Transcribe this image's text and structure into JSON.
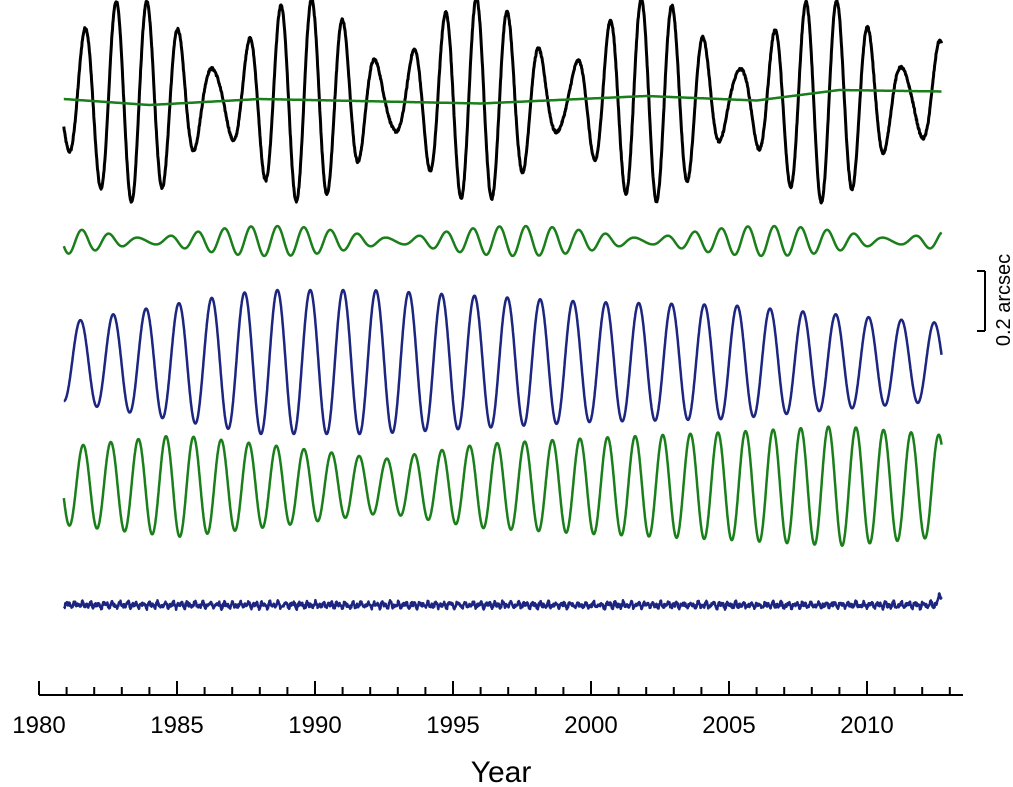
{
  "chart_data": {
    "type": "line",
    "title": "",
    "xlabel": "Year",
    "ylabel": "",
    "xlim": [
      1980,
      2013.5
    ],
    "x_ticks_major": [
      1980,
      1985,
      1990,
      1995,
      2000,
      2005,
      2010
    ],
    "x_tick_labels": [
      "1980",
      "1985",
      "1990",
      "1995",
      "2000",
      "2005",
      "2010"
    ],
    "x_ticks_minor_step": 1,
    "x_range": [
      1980.9,
      2012.7
    ],
    "grid": false,
    "legend": "none",
    "scale_bar": {
      "label": "0.2 arcsec",
      "value_arcsec": 0.2
    },
    "series": [
      {
        "color": "#000000",
        "components": [
          {
            "period_years": 1.19,
            "amplitude_arcsec": 0.22,
            "phase_year": 1983.65
          },
          {
            "period_years": 1.0,
            "amplitude_arcsec": 0.12,
            "phase_year": 1983.6
          }
        ],
        "envelope_note": "beat of Chandler and annual terms",
        "noise_arcsec": 0.004
      },
      {
        "color": "#1a7f1a",
        "trend_points_arcsec": [
          [
            1980.9,
            0.0
          ],
          [
            1984,
            -0.02
          ],
          [
            1988,
            0.0
          ],
          [
            1996,
            -0.015
          ],
          [
            2002,
            0.01
          ],
          [
            2006,
            -0.005
          ],
          [
            2009,
            0.03
          ],
          [
            2012.7,
            0.025
          ]
        ]
      },
      {
        "color": "#1a7f1a",
        "components": [
          {
            "period_years": 1.0,
            "amplitude_arcsec": 0.03,
            "phase_year": 1981.4
          },
          {
            "period_years": 0.9,
            "amplitude_arcsec": 0.02,
            "phase_year": 1981.2
          }
        ]
      },
      {
        "color": "#1c2580",
        "components": [
          {
            "period_years": 1.19,
            "amplitude_arcsec": 0.2,
            "phase_year": 1981.2
          }
        ],
        "amplitude_profile": [
          [
            1980.9,
            0.13
          ],
          [
            1984,
            0.18
          ],
          [
            1988,
            0.24
          ],
          [
            1992,
            0.24
          ],
          [
            1996,
            0.22
          ],
          [
            2000,
            0.2
          ],
          [
            2005,
            0.19
          ],
          [
            2010,
            0.15
          ],
          [
            2012.7,
            0.13
          ]
        ]
      },
      {
        "color": "#1a7f1a",
        "components": [
          {
            "period_years": 1.0,
            "amplitude_arcsec": 0.15,
            "phase_year": 1981.35
          }
        ],
        "amplitude_profile": [
          [
            1980.9,
            0.13
          ],
          [
            1985,
            0.17
          ],
          [
            1989,
            0.13
          ],
          [
            1992.5,
            0.09
          ],
          [
            1996,
            0.14
          ],
          [
            2000,
            0.16
          ],
          [
            2005,
            0.18
          ],
          [
            2009,
            0.2
          ],
          [
            2012.7,
            0.17
          ]
        ]
      },
      {
        "color": "#1c2580",
        "residual_amplitude_arcsec": 0.015,
        "end_jump_arcsec": 0.035
      }
    ]
  }
}
